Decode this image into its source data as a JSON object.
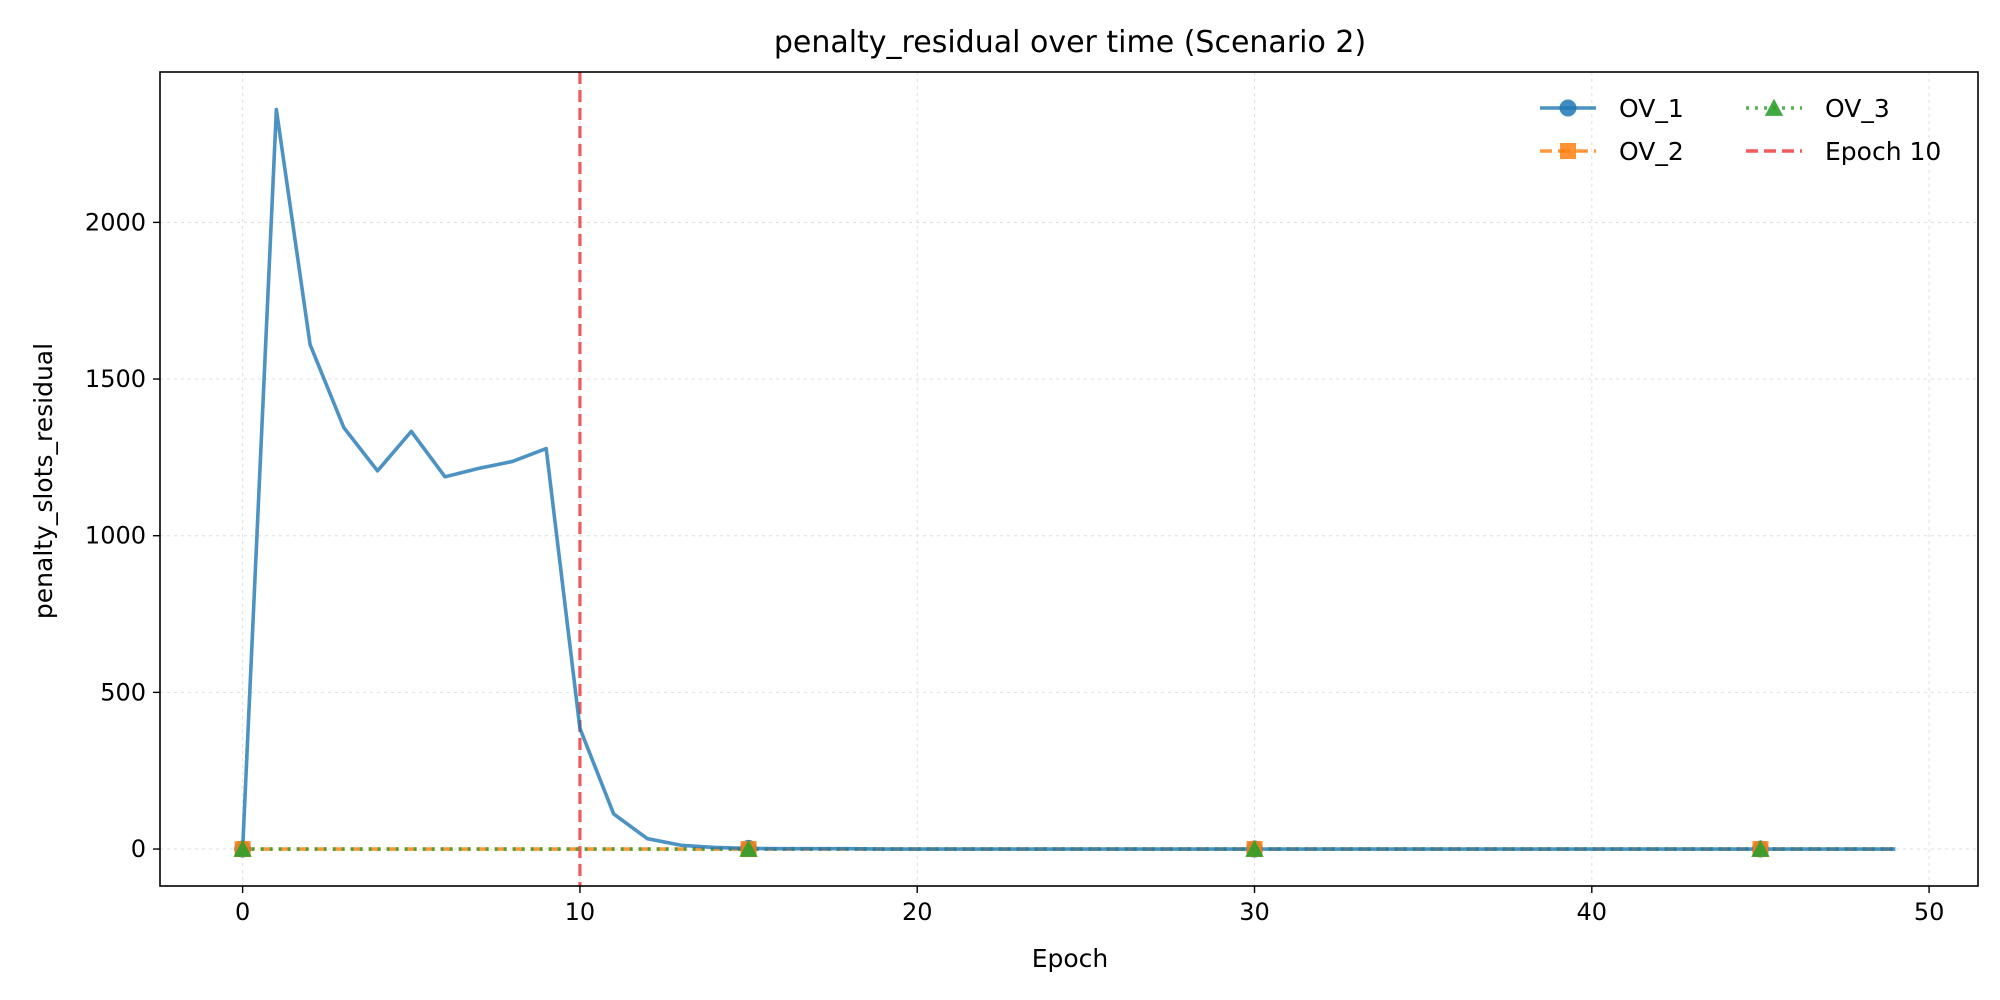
{
  "chart_data": {
    "type": "line",
    "title": "penalty_residual over time (Scenario 2)",
    "xlabel": "Epoch",
    "ylabel": "penalty_slots_residual",
    "xlim": [
      -2.45,
      51.45
    ],
    "ylim": [
      -118,
      2480
    ],
    "xticks": [
      0,
      10,
      20,
      30,
      40,
      50
    ],
    "yticks": [
      0,
      500,
      1000,
      1500,
      2000
    ],
    "grid": true,
    "legend_position": "top-right",
    "legend_columns": 2,
    "series": [
      {
        "name": "OV_1",
        "color": "#1f77b4",
        "line_style": "solid",
        "marker": "circle",
        "x": [
          0,
          1,
          2,
          3,
          4,
          5,
          6,
          7,
          8,
          9,
          10,
          11,
          12,
          13,
          14,
          15,
          16,
          17,
          18,
          19,
          20,
          21,
          22,
          23,
          24,
          25,
          26,
          27,
          28,
          29,
          30,
          31,
          32,
          33,
          34,
          35,
          36,
          37,
          38,
          39,
          40,
          41,
          42,
          43,
          44,
          45,
          46,
          47,
          48,
          49
        ],
        "values": [
          0,
          2360,
          1610,
          1345,
          1207,
          1333,
          1188,
          1215,
          1237,
          1278,
          385,
          112,
          33,
          12,
          5,
          2,
          1,
          1,
          1,
          0,
          0,
          0,
          0,
          0,
          0,
          0,
          0,
          0,
          0,
          0,
          0,
          0,
          0,
          0,
          0,
          0,
          0,
          0,
          0,
          0,
          0,
          0,
          0,
          0,
          0,
          0,
          0,
          0,
          0,
          0
        ]
      },
      {
        "name": "OV_2",
        "color": "#ff7f0e",
        "line_style": "dashed",
        "marker": "square",
        "x": [
          0,
          1,
          2,
          3,
          4,
          5,
          6,
          7,
          8,
          9,
          10,
          11,
          12,
          13,
          14,
          15,
          16,
          17,
          18,
          19,
          20,
          21,
          22,
          23,
          24,
          25,
          26,
          27,
          28,
          29,
          30,
          31,
          32,
          33,
          34,
          35,
          36,
          37,
          38,
          39,
          40,
          41,
          42,
          43,
          44,
          45,
          46,
          47,
          48,
          49
        ],
        "values": [
          0,
          0,
          0,
          0,
          0,
          0,
          0,
          0,
          0,
          0,
          0,
          0,
          0,
          0,
          0,
          0,
          0,
          0,
          0,
          0,
          0,
          0,
          0,
          0,
          0,
          0,
          0,
          0,
          0,
          0,
          0,
          0,
          0,
          0,
          0,
          0,
          0,
          0,
          0,
          0,
          0,
          0,
          0,
          0,
          0,
          0,
          0,
          0,
          0,
          0
        ]
      },
      {
        "name": "OV_3",
        "color": "#2ca02c",
        "line_style": "dotted",
        "marker": "triangle",
        "x": [
          0,
          1,
          2,
          3,
          4,
          5,
          6,
          7,
          8,
          9,
          10,
          11,
          12,
          13,
          14,
          15,
          16,
          17,
          18,
          19,
          20,
          21,
          22,
          23,
          24,
          25,
          26,
          27,
          28,
          29,
          30,
          31,
          32,
          33,
          34,
          35,
          36,
          37,
          38,
          39,
          40,
          41,
          42,
          43,
          44,
          45,
          46,
          47,
          48,
          49
        ],
        "values": [
          0,
          0,
          0,
          0,
          0,
          0,
          0,
          0,
          0,
          0,
          0,
          0,
          0,
          0,
          0,
          0,
          0,
          0,
          0,
          0,
          0,
          0,
          0,
          0,
          0,
          0,
          0,
          0,
          0,
          0,
          0,
          0,
          0,
          0,
          0,
          0,
          0,
          0,
          0,
          0,
          0,
          0,
          0,
          0,
          0,
          0,
          0,
          0,
          0,
          0
        ]
      }
    ],
    "annotations": [
      {
        "type": "vline",
        "x": 10,
        "name": "Epoch 10",
        "color": "#ee3333",
        "line_style": "dashed"
      }
    ]
  }
}
